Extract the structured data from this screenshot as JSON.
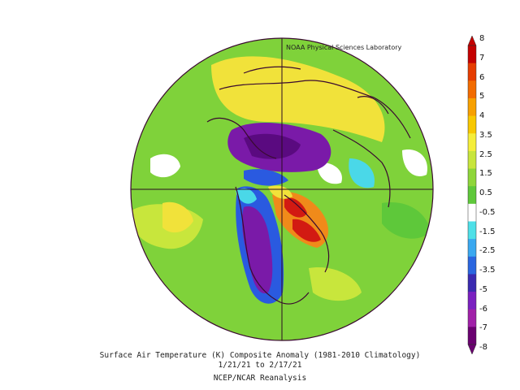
{
  "credit": "NOAA Physical Sciences Laboratory",
  "caption": {
    "line1": "Surface Air Temperature (K) Composite Anomaly (1981-2010 Climatology)",
    "line2": "1/21/21  to 2/17/21",
    "line3": "NCEP/NCAR Reanalysis"
  },
  "colorbar": {
    "labels": [
      "8",
      "7",
      "6",
      "5",
      "4",
      "3.5",
      "2.5",
      "1.5",
      "0.5",
      "-0.5",
      "-1.5",
      "-2.5",
      "-3.5",
      "-5",
      "-6",
      "-7",
      "-8"
    ],
    "colors": [
      "#c40000",
      "#e63c00",
      "#f26b00",
      "#f7a000",
      "#f8c800",
      "#f5ee3a",
      "#c8e63c",
      "#8ed63a",
      "#5ec83a",
      "#ffffff",
      "#4ee0e8",
      "#3aa8f0",
      "#2a66e0",
      "#3a2ab0",
      "#7a20c0",
      "#a020a8",
      "#6a0070"
    ]
  },
  "map": {
    "projection": "north-polar-stereographic",
    "fill_colors": {
      "background_warm": "#7fd23a",
      "yellow_warm": "#f1e23a",
      "orange_warm": "#f08a1a",
      "red_warm": "#d21a12",
      "cold_purple": "#7a1aa8",
      "cold_deep": "#5a0a80",
      "cold_blue": "#2a5ae0",
      "cold_cyan": "#4ad8e8",
      "neutral_white": "#ffffff",
      "coast": "#3a0a30"
    }
  }
}
